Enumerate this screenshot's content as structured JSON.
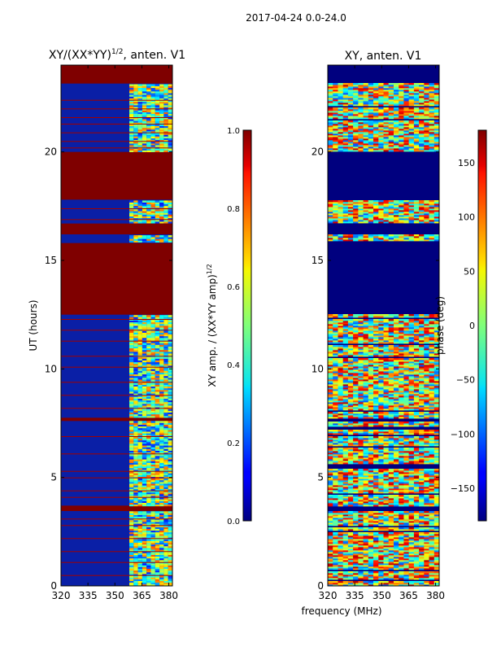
{
  "suptitle": "2017-04-24 0.0-24.0",
  "chart_data": [
    {
      "type": "heatmap",
      "title": "XY/(XX*YY)^{1/2}, anten. V1",
      "title_main": "XY/(XX*YY)",
      "title_sup": "1/2",
      "title_tail": ", anten. V1",
      "xlabel": "",
      "ylabel": "UT (hours)",
      "xlim": [
        320,
        382
      ],
      "ylim": [
        0,
        24
      ],
      "x_ticks": [
        320,
        335,
        350,
        365,
        380
      ],
      "y_ticks": [
        0,
        5,
        10,
        15,
        20
      ],
      "colormap": "jet",
      "colorbar": {
        "label_main": "XY amp. / (XX*YY amp)",
        "label_sup": "1/2",
        "range": [
          0.0,
          1.0
        ],
        "ticks": [
          "0.0",
          "0.2",
          "0.4",
          "0.6",
          "0.8",
          "1.0"
        ]
      },
      "saturated_time_ranges_hours": [
        [
          23.15,
          24.0
        ],
        [
          17.8,
          20.0
        ],
        [
          16.2,
          16.7
        ],
        [
          12.5,
          15.8
        ],
        [
          7.6,
          7.75
        ],
        [
          3.45,
          3.7
        ]
      ],
      "bright_band_mhz": [
        358,
        382
      ],
      "fine_lines_hours": [
        0.5,
        1.1,
        1.6,
        2.2,
        2.8,
        3.1,
        4.1,
        4.4,
        5.0,
        5.3,
        6.1,
        6.9,
        8.2,
        8.8,
        9.4,
        10.1,
        10.6,
        11.3,
        11.8,
        12.3,
        16.9,
        17.4,
        20.2,
        20.5,
        20.9,
        21.3,
        21.6,
        22.0,
        22.4
      ]
    },
    {
      "type": "heatmap",
      "title": "XY, anten. V1",
      "xlabel": "frequency (MHz)",
      "ylabel": "",
      "xlim": [
        320,
        382
      ],
      "ylim": [
        0,
        24
      ],
      "x_ticks": [
        320,
        335,
        350,
        365,
        380
      ],
      "y_ticks": [
        0,
        5,
        10,
        15,
        20
      ],
      "colormap": "jet",
      "colorbar": {
        "label": "phase (deg)",
        "range": [
          -180,
          180
        ],
        "ticks": [
          "150",
          "100",
          "50",
          "0",
          "−50",
          "−100",
          "−150"
        ],
        "tick_values": [
          150,
          100,
          50,
          0,
          -50,
          -100,
          -150
        ]
      },
      "flagged_time_ranges_hours": [
        [
          23.15,
          24.0
        ],
        [
          17.8,
          20.0
        ],
        [
          16.2,
          16.7
        ],
        [
          12.5,
          15.8
        ],
        [
          7.6,
          7.75
        ],
        [
          3.45,
          3.7
        ]
      ]
    }
  ]
}
